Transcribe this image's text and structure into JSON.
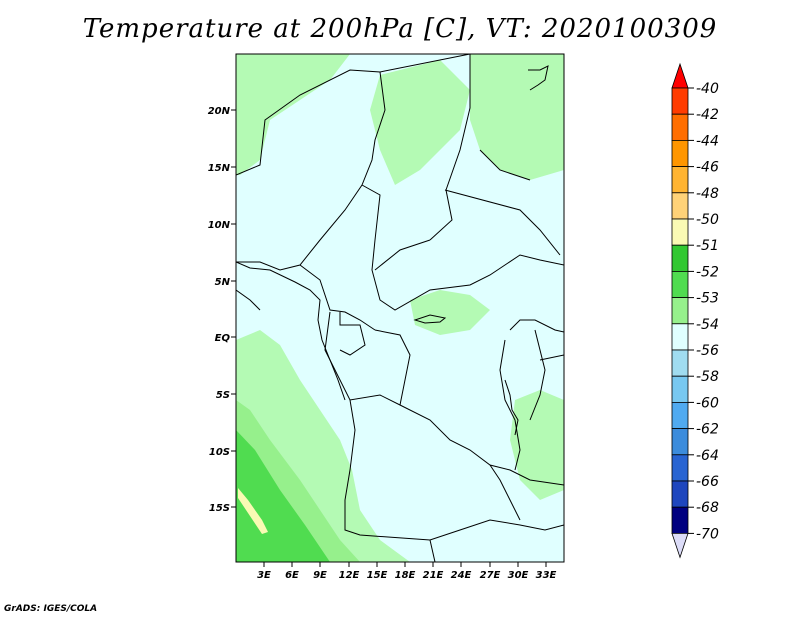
{
  "title": "Temperature at 200hPa [C], VT: 2020100309",
  "credit": "GrADS: IGES/COLA",
  "map": {
    "lat_labels": [
      "20N",
      "15N",
      "10N",
      "5N",
      "EQ",
      "5S",
      "10S",
      "15S"
    ],
    "lon_labels": [
      "3E",
      "6E",
      "9E",
      "12E",
      "15E",
      "18E",
      "21E",
      "24E",
      "27E",
      "30E",
      "33E"
    ],
    "fill_colors": {
      "background": "#e0ffff",
      "level_m53_m52": "#96f08c",
      "level_m52_m51": "#50dc50",
      "level_m51_m50": "#fafab4",
      "level_m54_m53": "#b4fab4"
    }
  },
  "colorbar": {
    "labels": [
      "-40",
      "-42",
      "-44",
      "-46",
      "-48",
      "-50",
      "-51",
      "-52",
      "-53",
      "-54",
      "-56",
      "-58",
      "-60",
      "-62",
      "-64",
      "-66",
      "-68",
      "-70"
    ],
    "colors": [
      "#ff0000",
      "#ff3c00",
      "#ff6e00",
      "#ff9600",
      "#ffb432",
      "#ffd278",
      "#fafab4",
      "#32c832",
      "#50dc50",
      "#96f08c",
      "#e0ffff",
      "#a0dcf0",
      "#78c8f0",
      "#50aaf0",
      "#3c8cdc",
      "#2864d2",
      "#1e46be",
      "#000080",
      "#dcdcf8"
    ],
    "top_triangle_color": "#ff0000",
    "bottom_triangle_color": "#dcdcf8"
  }
}
